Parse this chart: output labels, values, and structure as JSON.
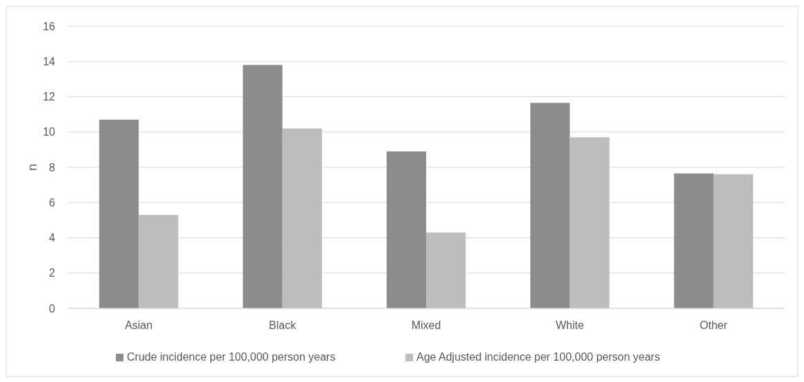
{
  "chart_data": {
    "type": "bar",
    "ylabel": "n",
    "categories": [
      "Asian",
      "Black",
      "Mixed",
      "White",
      "Other"
    ],
    "series": [
      {
        "name": "Crude incidence per 100,000 person years",
        "color": "#8c8c8c",
        "values": [
          10.7,
          13.8,
          8.9,
          11.65,
          7.65
        ]
      },
      {
        "name": "Age Adjusted incidence per 100,000 person years",
        "color": "#bdbdbd",
        "values": [
          5.3,
          10.2,
          4.3,
          9.7,
          7.6
        ]
      }
    ],
    "ylim": [
      0,
      16
    ],
    "yticks": [
      0,
      2,
      4,
      6,
      8,
      10,
      12,
      14,
      16
    ],
    "grid": "y",
    "legend": "bottom"
  }
}
